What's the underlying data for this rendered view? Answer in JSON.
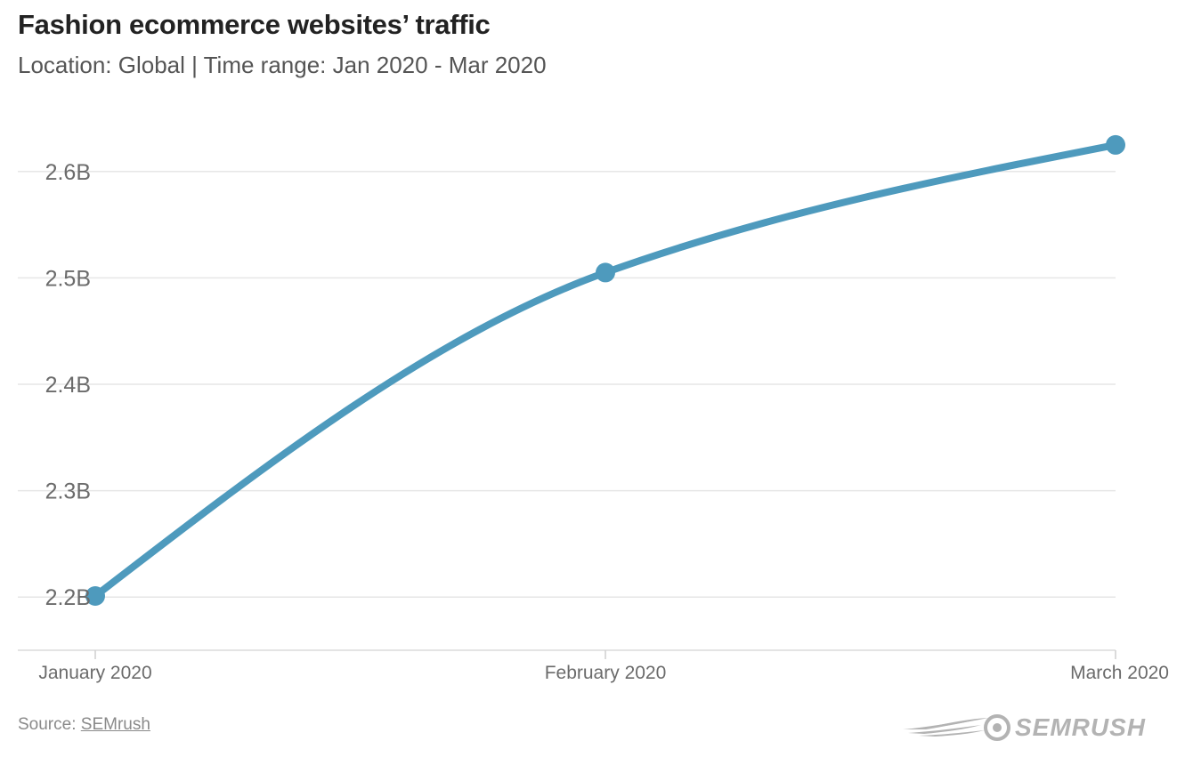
{
  "header": {
    "title": "Fashion ecommerce websites’ traffic",
    "subtitle": "Location: Global | Time range: Jan 2020 - Mar 2020"
  },
  "footer": {
    "source_prefix": "Source: ",
    "source_link": "SEMrush",
    "logo_text": "SEMRUSH"
  },
  "colors": {
    "line": "#4e9abd",
    "grid": "#e6e6e6",
    "axis_text": "#6b6b6b",
    "logo": "#b3b3b3"
  },
  "chart_data": {
    "type": "line",
    "categories": [
      "January 2020",
      "February 2020",
      "March 2020"
    ],
    "series": [
      {
        "values": [
          2.201,
          2.505,
          2.625
        ]
      }
    ],
    "y_ticks": [
      2.2,
      2.3,
      2.4,
      2.5,
      2.6
    ],
    "y_tick_labels": [
      "2.2B",
      "2.3B",
      "2.4B",
      "2.5B",
      "2.6B"
    ],
    "ylim": [
      2.15,
      2.65
    ],
    "unit": "B",
    "grid": true,
    "title": "Fashion ecommerce websites’ traffic",
    "xlabel": "",
    "ylabel": ""
  }
}
